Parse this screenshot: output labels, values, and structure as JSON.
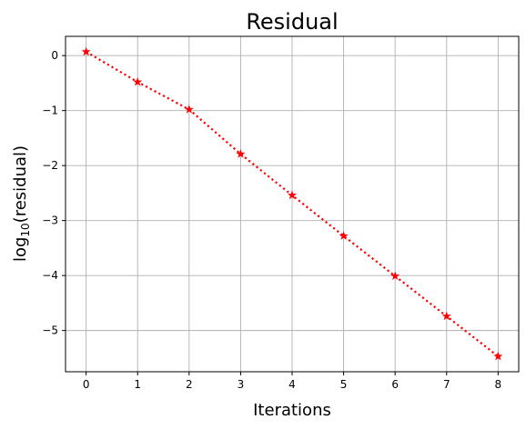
{
  "chart_data": {
    "type": "line",
    "title": "Residual",
    "xlabel": "Iterations",
    "ylabel": {
      "base": "log",
      "subscript": "10",
      "rest": "(residual)"
    },
    "x": [
      0,
      1,
      2,
      3,
      4,
      5,
      6,
      7,
      8
    ],
    "series": [
      {
        "values": [
          0.07,
          -0.48,
          -0.98,
          -1.79,
          -2.54,
          -3.28,
          -4.01,
          -4.74,
          -5.47
        ],
        "color": "#ff0000",
        "line_style": "dotted",
        "marker": "star"
      }
    ],
    "xlim": [
      -0.4,
      8.4
    ],
    "ylim": [
      -5.75,
      0.35
    ],
    "xticks": [
      0,
      1,
      2,
      3,
      4,
      5,
      6,
      7,
      8
    ],
    "yticks": [
      0,
      -1,
      -2,
      -3,
      -4,
      -5
    ],
    "ytick_labels": [
      "0",
      "−1",
      "−2",
      "−3",
      "−4",
      "−5"
    ],
    "grid": true,
    "legend": "none"
  }
}
